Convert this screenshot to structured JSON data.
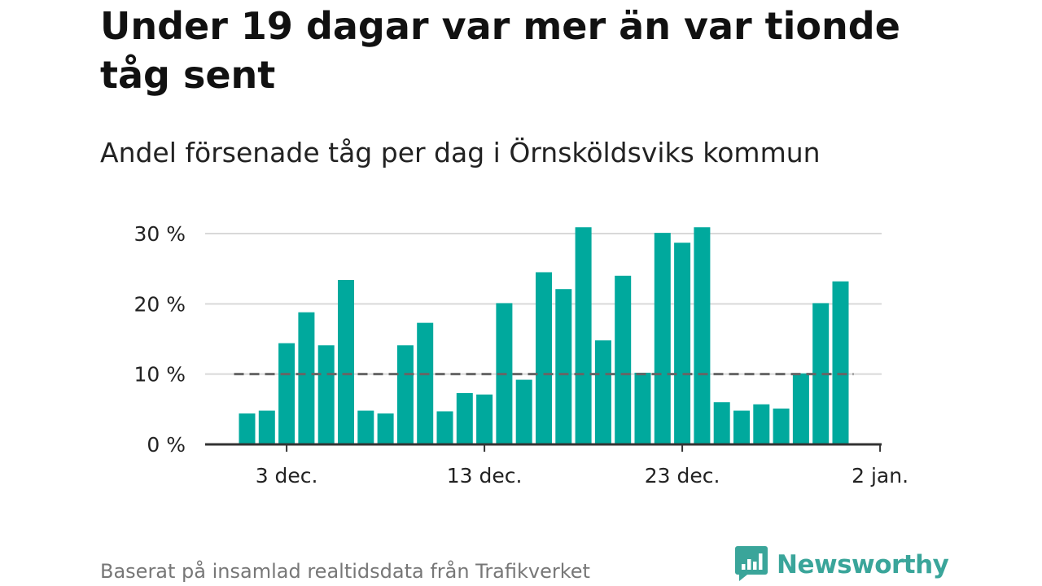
{
  "header": {
    "title": "Under 19 dagar var mer än var tionde tåg sent",
    "subtitle": "Andel försenade tåg per dag i Örnsköldsviks kommun"
  },
  "footer": {
    "source": "Baserat på insamlad realtidsdata från Trafikverket",
    "brand": "Newsworthy"
  },
  "colors": {
    "bar": "#00a99d",
    "grid": "#d9d9d9",
    "axis": "#333333",
    "reference_line": "#666666",
    "brand": "#3aa59a"
  },
  "icons": {
    "brand_logo": "newsworthy-logo-icon"
  },
  "chart_data": {
    "type": "bar",
    "title": "Under 19 dagar var mer än var tionde tåg sent",
    "subtitle": "Andel försenade tåg per dag i Örnsköldsviks kommun",
    "x": [
      "2024-12-01",
      "2024-12-02",
      "2024-12-03",
      "2024-12-04",
      "2024-12-05",
      "2024-12-06",
      "2024-12-07",
      "2024-12-08",
      "2024-12-09",
      "2024-12-10",
      "2024-12-11",
      "2024-12-12",
      "2024-12-13",
      "2024-12-14",
      "2024-12-15",
      "2024-12-16",
      "2024-12-17",
      "2024-12-18",
      "2024-12-19",
      "2024-12-20",
      "2024-12-21",
      "2024-12-22",
      "2024-12-23",
      "2024-12-24",
      "2024-12-25",
      "2024-12-26",
      "2024-12-27",
      "2024-12-28",
      "2024-12-29",
      "2024-12-30",
      "2024-12-31"
    ],
    "values": [
      4.4,
      4.8,
      14.4,
      18.8,
      14.1,
      23.4,
      4.8,
      4.4,
      14.1,
      17.3,
      4.7,
      7.3,
      7.1,
      20.1,
      9.2,
      24.5,
      22.1,
      30.9,
      14.8,
      24.0,
      10.2,
      30.1,
      28.7,
      30.9,
      6.0,
      4.8,
      5.7,
      5.1,
      10.1,
      20.1,
      23.2
    ],
    "reference_line": 10,
    "ylim": [
      0,
      30
    ],
    "y_ticks": [
      0,
      10,
      20,
      30
    ],
    "y_tick_labels": [
      "0 %",
      "10 %",
      "20 %",
      "30 %"
    ],
    "x_ticks": [
      "2024-12-03",
      "2024-12-13",
      "2024-12-23",
      "2025-01-02"
    ],
    "x_tick_labels": [
      "3 dec.",
      "13 dec.",
      "23 dec.",
      "2 jan."
    ],
    "grid": true,
    "legend": "none"
  }
}
